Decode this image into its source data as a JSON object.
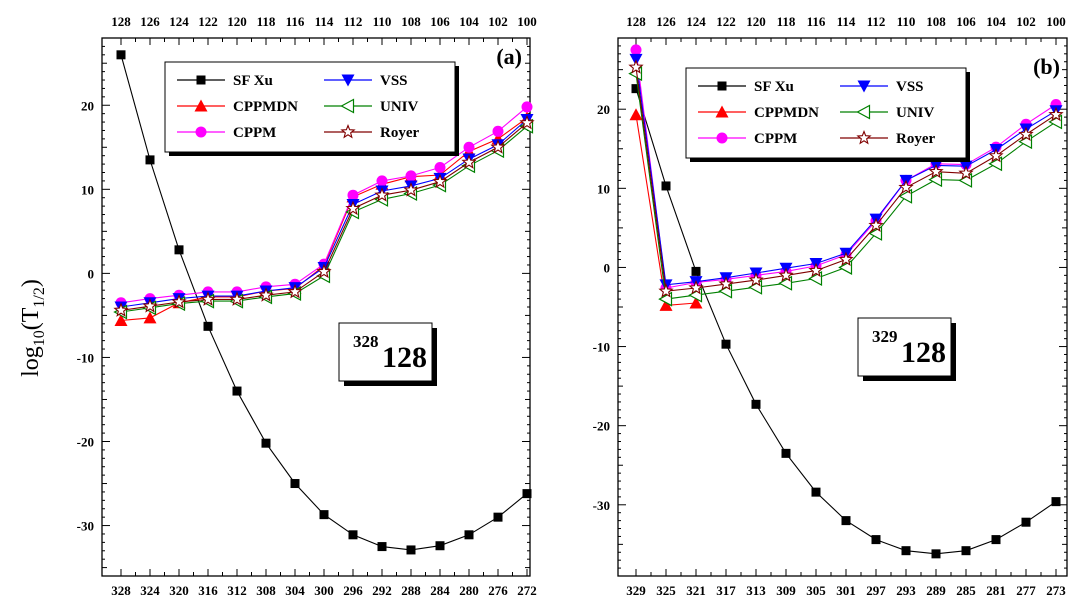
{
  "y_axis_label": {
    "prefix": "log",
    "sub1": "10",
    "middle": "(T",
    "sub2": "1/2",
    "suffix": ")"
  },
  "chart_data": [
    {
      "type": "line",
      "panel_label": "(a)",
      "nucleus": {
        "mass": "328",
        "symbol": "128"
      },
      "x": [
        328,
        324,
        320,
        316,
        312,
        308,
        304,
        300,
        296,
        292,
        288,
        284,
        280,
        276,
        272
      ],
      "x_tick_labels": [
        "328",
        "324",
        "320",
        "316",
        "312",
        "308",
        "304",
        "300",
        "296",
        "292",
        "288",
        "284",
        "280",
        "276",
        "272"
      ],
      "top_tick_labels": [
        "128",
        "126",
        "124",
        "122",
        "120",
        "118",
        "116",
        "114",
        "112",
        "110",
        "108",
        "106",
        "104",
        "102",
        "100"
      ],
      "y_ticks": [
        20,
        10,
        0,
        -10,
        -20,
        -30
      ],
      "y_tick_labels": [
        "20",
        "10",
        "0",
        "-10",
        "-20",
        "-30"
      ],
      "ylim": [
        -36,
        28
      ],
      "series": [
        {
          "name": "SF Xu",
          "color": "#000000",
          "marker": "square",
          "values": [
            26,
            13.5,
            2.8,
            -6.3,
            -14,
            -20.2,
            -25,
            -28.7,
            -31.1,
            -32.5,
            -32.9,
            -32.4,
            -31.1,
            -29,
            -26.2
          ]
        },
        {
          "name": "CPPMDN",
          "color": "#ff0000",
          "marker": "triangle-up",
          "values": [
            -5.6,
            -5.3,
            -3.5,
            -2.8,
            -2.8,
            -2.1,
            -1.8,
            0.9,
            9.1,
            10.6,
            11.5,
            11.7,
            14.5,
            16,
            18.5
          ]
        },
        {
          "name": "CPPM",
          "color": "#ff00ff",
          "marker": "circle",
          "values": [
            -3.5,
            -3.0,
            -2.6,
            -2.2,
            -2.2,
            -1.6,
            -1.3,
            1.1,
            9.3,
            11,
            11.6,
            12.6,
            15,
            16.9,
            19.8
          ]
        },
        {
          "name": "VSS",
          "color": "#0000ff",
          "marker": "triangle-down",
          "values": [
            -4.0,
            -3.5,
            -3.0,
            -2.7,
            -2.7,
            -2.1,
            -1.7,
            0.7,
            8.2,
            9.8,
            10.4,
            11.3,
            13.6,
            15.3,
            18.3
          ]
        },
        {
          "name": "UNIV",
          "color": "#008000",
          "marker": "triangle-left",
          "values": [
            -4.6,
            -4.1,
            -3.6,
            -3.3,
            -3.3,
            -2.8,
            -2.4,
            -0.3,
            7.3,
            8.8,
            9.5,
            10.5,
            12.8,
            14.6,
            17.5
          ]
        },
        {
          "name": "Royer",
          "color": "#800000",
          "marker": "star",
          "values": [
            -4.4,
            -3.9,
            -3.4,
            -3.1,
            -3.1,
            -2.6,
            -2.2,
            0.2,
            7.7,
            9.3,
            9.9,
            10.9,
            13.2,
            15,
            17.9
          ]
        }
      ]
    },
    {
      "type": "line",
      "panel_label": "(b)",
      "nucleus": {
        "mass": "329",
        "symbol": "128"
      },
      "x": [
        329,
        325,
        321,
        317,
        313,
        309,
        305,
        301,
        297,
        293,
        289,
        285,
        281,
        277,
        273
      ],
      "x_tick_labels": [
        "329",
        "325",
        "321",
        "317",
        "313",
        "309",
        "305",
        "301",
        "297",
        "293",
        "289",
        "285",
        "281",
        "277",
        "273"
      ],
      "top_tick_labels": [
        "128",
        "126",
        "124",
        "122",
        "120",
        "118",
        "116",
        "114",
        "112",
        "110",
        "108",
        "106",
        "104",
        "102",
        "100"
      ],
      "y_ticks": [
        20,
        10,
        0,
        -10,
        -20,
        -30
      ],
      "y_tick_labels": [
        "20",
        "10",
        "0",
        "-10",
        "-20",
        "-30"
      ],
      "ylim": [
        -39,
        29
      ],
      "series": [
        {
          "name": "SF Xu",
          "color": "#000000",
          "marker": "square",
          "values": [
            22.6,
            10.3,
            -0.5,
            -9.7,
            -17.3,
            -23.5,
            -28.4,
            -32,
            -34.4,
            -35.8,
            -36.2,
            -35.8,
            -34.4,
            -32.2,
            -29.6
          ]
        },
        {
          "name": "CPPMDN",
          "color": "#ff0000",
          "marker": "triangle-up",
          "values": [
            19.3,
            -4.8,
            -4.5,
            null,
            null,
            null,
            null,
            null,
            null,
            null,
            null,
            null,
            null,
            null,
            null
          ]
        },
        {
          "name": "CPPM",
          "color": "#ff00ff",
          "marker": "circle",
          "values": [
            27.5,
            -2.6,
            -1.9,
            -1.5,
            -1.0,
            -0.5,
            0.2,
            1.6,
            5.9,
            11.0,
            13.1,
            13.0,
            15.2,
            18.1,
            20.6
          ]
        },
        {
          "name": "VSS",
          "color": "#0000ff",
          "marker": "triangle-down",
          "values": [
            26.3,
            -2.2,
            -1.8,
            -1.3,
            -0.7,
            -0.1,
            0.5,
            1.8,
            6.1,
            11.0,
            12.9,
            12.8,
            14.9,
            17.5,
            19.8
          ]
        },
        {
          "name": "UNIV",
          "color": "#008000",
          "marker": "triangle-left",
          "values": [
            24.5,
            -4.0,
            -3.5,
            -3.0,
            -2.5,
            -2.0,
            -1.4,
            0.0,
            4.3,
            9.0,
            11.1,
            11.0,
            13.1,
            15.9,
            18.4
          ]
        },
        {
          "name": "Royer",
          "color": "#800000",
          "marker": "star",
          "values": [
            25.3,
            -3.0,
            -2.6,
            -2.1,
            -1.6,
            -1.0,
            -0.4,
            1.0,
            5.3,
            10.1,
            12.1,
            11.9,
            14.1,
            16.8,
            19.3
          ]
        }
      ]
    }
  ]
}
